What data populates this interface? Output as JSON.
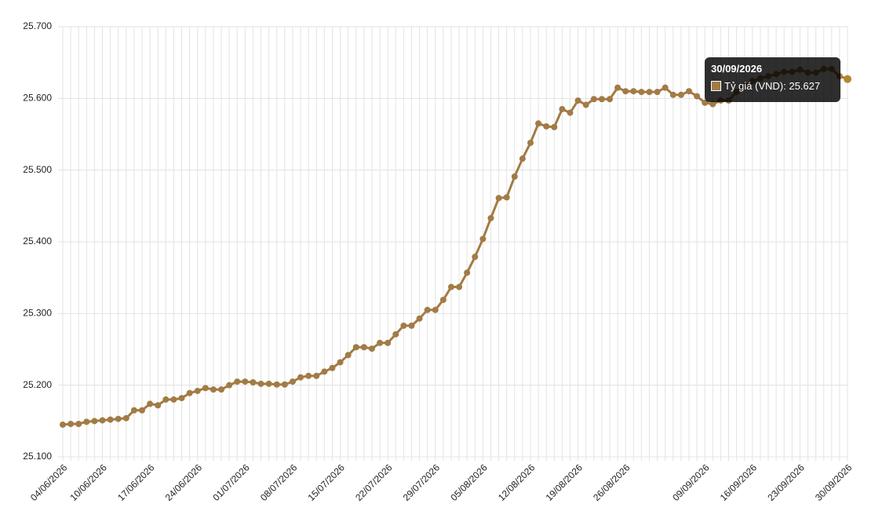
{
  "chart_data": {
    "type": "line",
    "categories": [
      "04/06/2026",
      null,
      null,
      null,
      null,
      "10/06/2026",
      null,
      null,
      null,
      null,
      null,
      "17/06/2026",
      null,
      null,
      null,
      null,
      null,
      "24/06/2026",
      null,
      null,
      null,
      null,
      null,
      "01/07/2026",
      null,
      null,
      null,
      null,
      null,
      "08/07/2026",
      null,
      null,
      null,
      null,
      null,
      "15/07/2026",
      null,
      null,
      null,
      null,
      null,
      "22/07/2026",
      null,
      null,
      null,
      null,
      null,
      "29/07/2026",
      null,
      null,
      null,
      null,
      null,
      "05/08/2026",
      null,
      null,
      null,
      null,
      null,
      "12/08/2026",
      null,
      null,
      null,
      null,
      null,
      "19/08/2026",
      null,
      null,
      null,
      null,
      null,
      "26/08/2026",
      null,
      null,
      null,
      null,
      null,
      null,
      null,
      null,
      null,
      "09/09/2026",
      null,
      null,
      null,
      null,
      null,
      "16/09/2026",
      null,
      null,
      null,
      null,
      null,
      "23/09/2026",
      null,
      null,
      null,
      null,
      null,
      "30/09/2026"
    ],
    "values": [
      25145,
      25146,
      25146,
      25149,
      25150,
      25151,
      25152,
      25153,
      25154,
      25165,
      25165,
      25174,
      25172,
      25180,
      25180,
      25182,
      25189,
      25192,
      25196,
      25194,
      25194,
      25200,
      25205,
      25205,
      25204,
      25202,
      25202,
      25201,
      25201,
      25205,
      25211,
      25213,
      25213,
      25219,
      25224,
      25232,
      25242,
      25253,
      25253,
      25251,
      25259,
      25259,
      25271,
      25283,
      25283,
      25293,
      25305,
      25305,
      25319,
      25337,
      25337,
      25357,
      25379,
      25404,
      25433,
      25461,
      25462,
      25491,
      25516,
      25538,
      25565,
      25561,
      25560,
      25585,
      25580,
      25597,
      25591,
      25599,
      25599,
      25599,
      25615,
      25610,
      25610,
      25609,
      25609,
      25609,
      25615,
      25605,
      25605,
      25610,
      25603,
      25594,
      25592,
      25597,
      25597,
      25609,
      25617,
      25624,
      25628,
      25631,
      25634,
      25637,
      25637,
      25640,
      25636,
      25636,
      25641,
      25641,
      25631,
      25627
    ],
    "color": "#a27b45",
    "ylim": [
      25100,
      25700
    ],
    "yticks": [
      {
        "value": 25100,
        "label": "25.100"
      },
      {
        "value": 25200,
        "label": "25.200"
      },
      {
        "value": 25300,
        "label": "25.300"
      },
      {
        "value": 25400,
        "label": "25.400"
      },
      {
        "value": 25500,
        "label": "25.500"
      },
      {
        "value": 25600,
        "label": "25.600"
      },
      {
        "value": 25700,
        "label": "25.700"
      }
    ],
    "grid": true,
    "tooltip": {
      "text": "Tỷ giá (VND): 25.627"
    }
  }
}
